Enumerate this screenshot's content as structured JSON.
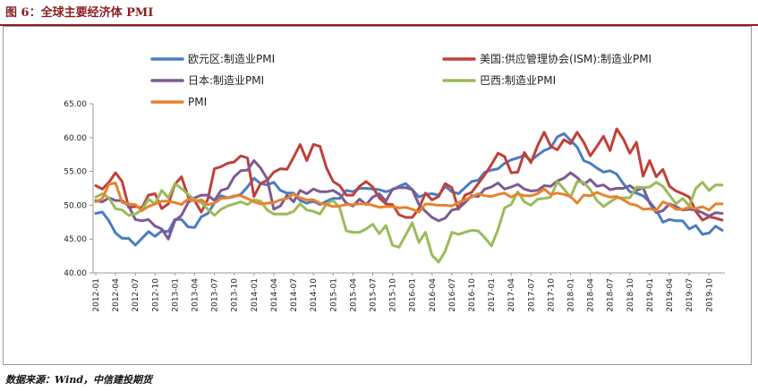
{
  "header": {
    "title": "图 6：全球主要经济体 PMI"
  },
  "footer": {
    "source": "数据来源：Wind，中信建投期货"
  },
  "chart_data": {
    "type": "line",
    "title": "",
    "xlabel": "",
    "ylabel": "",
    "ylim": [
      40,
      65
    ],
    "yticks": [
      "65.00",
      "60.00",
      "55.00",
      "50.00",
      "45.00",
      "40.00"
    ],
    "x_start": "2012-01",
    "x_end": "2019-12",
    "x_tick_labels": [
      "2012-01",
      "2012-04",
      "2012-07",
      "2012-10",
      "2013-01",
      "2013-04",
      "2013-07",
      "2013-10",
      "2014-01",
      "2014-04",
      "2014-07",
      "2014-10",
      "2015-01",
      "2015-04",
      "2015-07",
      "2015-10",
      "2016-01",
      "2016-04",
      "2016-07",
      "2016-10",
      "2017-01",
      "2017-04",
      "2017-07",
      "2017-10",
      "2018-01",
      "2018-04",
      "2018-07",
      "2018-10",
      "2019-01",
      "2019-04",
      "2019-07",
      "2019-10"
    ],
    "grid": false,
    "legend_position": "top",
    "series": [
      {
        "name": "欧元区:制造业PMI",
        "color": "#4a7dc0",
        "values": [
          48.8,
          49.0,
          47.7,
          45.9,
          45.1,
          45.1,
          44.1,
          45.1,
          46.1,
          45.4,
          46.2,
          46.1,
          47.9,
          47.9,
          46.8,
          46.7,
          48.3,
          48.8,
          50.3,
          51.4,
          51.1,
          51.3,
          51.6,
          52.7,
          54.0,
          53.2,
          53.0,
          53.4,
          52.2,
          51.8,
          51.8,
          50.7,
          50.3,
          50.6,
          50.1,
          50.6,
          51.0,
          51.0,
          52.2,
          52.0,
          52.5,
          52.5,
          52.4,
          52.3,
          52.0,
          52.3,
          52.8,
          53.2,
          52.3,
          51.2,
          51.6,
          51.7,
          51.5,
          52.8,
          52.0,
          51.7,
          52.6,
          53.5,
          53.7,
          54.9,
          55.2,
          55.4,
          56.2,
          56.7,
          57.0,
          57.4,
          56.6,
          57.4,
          58.1,
          58.5,
          60.1,
          60.6,
          59.6,
          58.6,
          56.6,
          56.2,
          55.5,
          54.9,
          55.1,
          54.6,
          53.2,
          52.0,
          51.8,
          51.4,
          50.5,
          49.3,
          47.5,
          47.9,
          47.7,
          47.7,
          46.5,
          47.0,
          45.7,
          45.9,
          46.9,
          46.3
        ]
      },
      {
        "name": "美国:供应管理协会(ISM):制造业PMI",
        "color": "#c0403a",
        "values": [
          52.9,
          52.4,
          53.4,
          54.8,
          53.5,
          49.7,
          49.8,
          49.6,
          51.5,
          51.7,
          49.5,
          50.2,
          53.1,
          54.2,
          51.3,
          50.7,
          49.0,
          50.9,
          55.4,
          55.7,
          56.2,
          56.4,
          57.3,
          57.0,
          51.3,
          53.2,
          53.7,
          54.9,
          55.4,
          55.3,
          57.1,
          59.0,
          56.6,
          59.0,
          58.7,
          55.5,
          53.5,
          52.9,
          51.5,
          51.5,
          52.8,
          53.5,
          52.7,
          51.1,
          50.2,
          50.1,
          48.6,
          48.2,
          48.2,
          49.5,
          51.8,
          50.8,
          51.3,
          53.2,
          52.6,
          49.4,
          51.5,
          51.9,
          53.2,
          54.5,
          56.0,
          57.7,
          57.2,
          54.8,
          54.9,
          57.8,
          56.3,
          58.8,
          60.8,
          58.7,
          58.2,
          59.7,
          59.1,
          60.8,
          59.3,
          57.3,
          58.7,
          60.2,
          58.1,
          61.3,
          59.8,
          57.7,
          59.3,
          54.3,
          56.6,
          54.2,
          55.3,
          52.8,
          52.1,
          51.7,
          51.2,
          49.1,
          47.8,
          48.3,
          48.1,
          47.8
        ]
      },
      {
        "name": "日本:制造业PMI",
        "color": "#7e5b8f",
        "values": [
          50.7,
          50.5,
          51.1,
          50.7,
          50.7,
          49.9,
          47.9,
          47.7,
          47.9,
          46.9,
          46.5,
          45.0,
          47.7,
          48.5,
          50.4,
          51.1,
          51.5,
          51.5,
          50.7,
          52.2,
          52.5,
          54.2,
          55.1,
          55.2,
          56.6,
          55.5,
          53.9,
          49.4,
          49.9,
          51.5,
          50.5,
          52.2,
          51.7,
          52.4,
          52.0,
          52.0,
          52.2,
          51.6,
          50.3,
          49.9,
          50.9,
          50.1,
          51.2,
          51.7,
          50.6,
          52.4,
          52.6,
          52.6,
          52.3,
          50.1,
          49.1,
          48.2,
          47.7,
          48.1,
          49.3,
          49.5,
          50.4,
          51.4,
          51.3,
          52.4,
          52.7,
          53.3,
          52.4,
          52.7,
          53.1,
          52.4,
          52.1,
          52.2,
          52.9,
          52.8,
          53.6,
          54.0,
          54.8,
          54.1,
          53.1,
          53.8,
          52.8,
          53.0,
          52.3,
          52.5,
          52.5,
          52.9,
          52.2,
          52.6,
          50.3,
          48.9,
          49.2,
          50.2,
          49.8,
          49.3,
          49.4,
          49.3,
          48.9,
          48.4,
          48.9,
          48.8
        ]
      },
      {
        "name": "巴西:制造业PMI",
        "color": "#9bbb59",
        "values": [
          51.2,
          51.7,
          51.1,
          49.5,
          49.3,
          48.5,
          48.7,
          49.3,
          50.9,
          50.2,
          52.2,
          51.1,
          53.2,
          52.5,
          51.6,
          50.8,
          50.4,
          49.4,
          48.5,
          49.4,
          49.9,
          50.2,
          50.5,
          50.1,
          50.8,
          50.6,
          49.3,
          48.7,
          48.7,
          48.7,
          49.1,
          50.2,
          49.3,
          49.1,
          48.7,
          50.2,
          50.7,
          49.6,
          46.2,
          46.0,
          46.0,
          46.5,
          47.2,
          45.8,
          47.0,
          44.1,
          43.8,
          45.6,
          47.4,
          44.5,
          46.0,
          42.6,
          41.6,
          43.2,
          46.0,
          45.7,
          46.0,
          46.3,
          46.2,
          45.2,
          44.0,
          46.4,
          49.6,
          50.1,
          52.0,
          50.5,
          50.0,
          50.9,
          51.0,
          51.2,
          53.5,
          52.4,
          51.2,
          53.5,
          53.4,
          52.3,
          50.7,
          49.8,
          50.5,
          51.1,
          51.1,
          51.1,
          52.7,
          52.6,
          52.7,
          53.4,
          52.8,
          51.5,
          50.2,
          51.0,
          49.9,
          52.5,
          53.4,
          52.2,
          53.0,
          53.0
        ]
      },
      {
        "name": "PMI",
        "color": "#e8822e",
        "values": [
          50.5,
          51.0,
          53.1,
          53.3,
          50.4,
          50.2,
          50.1,
          49.2,
          49.8,
          50.2,
          50.6,
          50.6,
          50.4,
          50.1,
          50.9,
          50.6,
          50.8,
          50.1,
          50.3,
          51.0,
          51.1,
          51.4,
          51.4,
          51.0,
          50.5,
          50.2,
          50.3,
          50.4,
          50.8,
          51.0,
          51.7,
          51.1,
          50.8,
          50.8,
          50.3,
          50.1,
          49.8,
          49.9,
          50.1,
          50.1,
          50.2,
          50.2,
          50.0,
          49.7,
          49.8,
          49.8,
          49.6,
          49.7,
          49.4,
          49.0,
          50.2,
          50.1,
          50.0,
          50.0,
          49.9,
          50.4,
          50.8,
          51.2,
          51.7,
          51.4,
          51.3,
          51.6,
          51.8,
          51.2,
          51.7,
          51.4,
          51.4,
          51.7,
          52.4,
          51.6,
          51.8,
          51.6,
          51.3,
          50.3,
          51.5,
          51.4,
          51.9,
          51.5,
          51.2,
          51.3,
          50.8,
          50.2,
          50.0,
          49.4,
          49.5,
          49.2,
          50.5,
          50.1,
          49.4,
          49.4,
          49.7,
          49.5,
          49.8,
          49.3,
          50.2,
          50.2
        ]
      }
    ]
  }
}
